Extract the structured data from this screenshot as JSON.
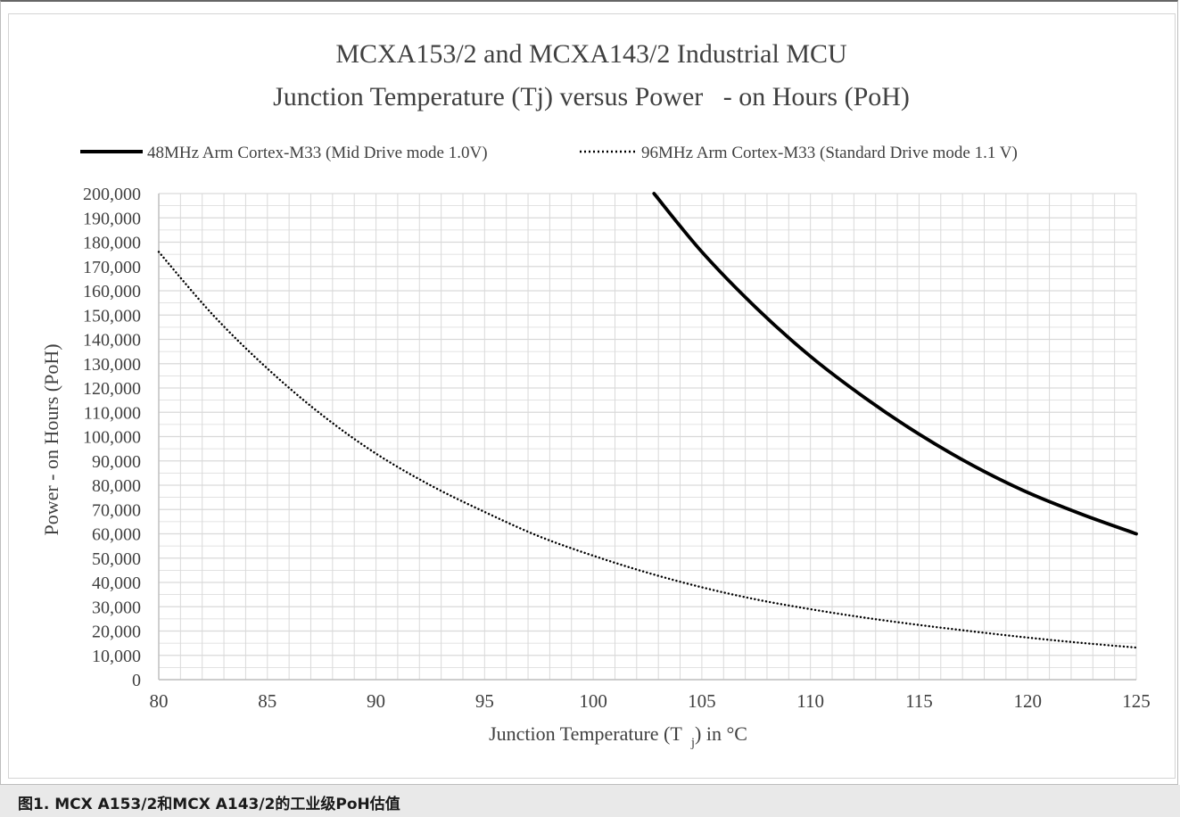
{
  "chart_data": {
    "type": "line",
    "title_lines": [
      "MCXA153/2 and MCXA143/2 Industrial MCU",
      "Junction Temperature (Tj) versus Power   - on Hours (PoH)"
    ],
    "xlabel": "Junction Temperature (T j) in °C",
    "xlabel_main": "Junction Temperature (T",
    "xlabel_sub": "j",
    "xlabel_tail": ") in °C",
    "ylabel": "Power - on Hours (PoH)",
    "xlim": [
      80,
      125
    ],
    "ylim": [
      0,
      200000
    ],
    "x_ticks": [
      "80",
      "85",
      "90",
      "95",
      "100",
      "105",
      "110",
      "115",
      "120",
      "125"
    ],
    "y_ticks": [
      "0",
      "10,000",
      "20,000",
      "30,000",
      "40,000",
      "50,000",
      "60,000",
      "70,000",
      "80,000",
      "90,000",
      "100,000",
      "110,000",
      "120,000",
      "130,000",
      "140,000",
      "150,000",
      "160,000",
      "170,000",
      "180,000",
      "190,000",
      "200,000"
    ],
    "grid": true,
    "legend_position": "top",
    "series": [
      {
        "name": "48MHz Arm Cortex-M33 (Mid Drive mode 1.0V)",
        "style": "solid",
        "color": "#000000",
        "x": [
          102.8,
          105,
          107.5,
          110,
          112.5,
          115,
          117.5,
          120,
          122.5,
          125
        ],
        "y": [
          200000,
          176000,
          153000,
          133000,
          116000,
          101000,
          88000,
          77000,
          68000,
          60000
        ]
      },
      {
        "name": "96MHz Arm Cortex-M33 (Standard Drive mode 1.1 V)",
        "style": "dotted",
        "color": "#000000",
        "x": [
          80,
          82.5,
          85,
          87.5,
          90,
          92.5,
          95,
          97.5,
          100,
          102.5,
          105,
          107.5,
          110,
          112.5,
          115,
          117.5,
          120,
          122.5,
          125
        ],
        "y": [
          176000,
          150000,
          128000,
          109000,
          93000,
          80000,
          69000,
          59000,
          51000,
          44000,
          38000,
          33000,
          29000,
          25500,
          22500,
          19800,
          17300,
          15100,
          13200
        ]
      }
    ]
  },
  "caption": "图1. MCX A153/2和MCX A143/2的工业级PoH估值",
  "colors": {
    "grid": "#d9d9d9",
    "text": "#404040",
    "caption_bg": "#e9e9e9"
  }
}
